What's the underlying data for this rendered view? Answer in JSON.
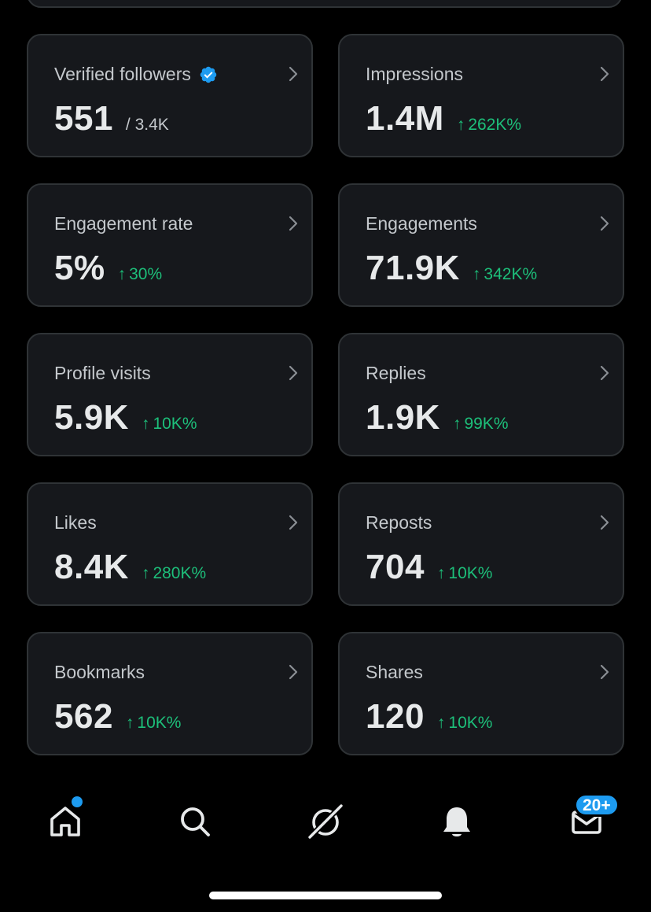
{
  "colors": {
    "background": "#000000",
    "card_background": "#16181c",
    "card_border": "#2f3336",
    "positive": "#1dbf7a",
    "accent": "#1d9bf0"
  },
  "metrics": [
    {
      "label": "Verified followers",
      "value": "551",
      "sub": "/ 3.4K",
      "delta": "",
      "verified_icon": true
    },
    {
      "label": "Impressions",
      "value": "1.4M",
      "sub": "",
      "delta": "262K%"
    },
    {
      "label": "Engagement rate",
      "value": "5%",
      "sub": "",
      "delta": "30%"
    },
    {
      "label": "Engagements",
      "value": "71.9K",
      "sub": "",
      "delta": "342K%"
    },
    {
      "label": "Profile visits",
      "value": "5.9K",
      "sub": "",
      "delta": "10K%"
    },
    {
      "label": "Replies",
      "value": "1.9K",
      "sub": "",
      "delta": "99K%"
    },
    {
      "label": "Likes",
      "value": "8.4K",
      "sub": "",
      "delta": "280K%"
    },
    {
      "label": "Reposts",
      "value": "704",
      "sub": "",
      "delta": "10K%"
    },
    {
      "label": "Bookmarks",
      "value": "562",
      "sub": "",
      "delta": "10K%"
    },
    {
      "label": "Shares",
      "value": "120",
      "sub": "",
      "delta": "10K%"
    }
  ],
  "delta_arrow": "↑",
  "bottom_nav": {
    "items": [
      {
        "icon": "home-icon",
        "has_dot": true
      },
      {
        "icon": "search-icon"
      },
      {
        "icon": "grok-icon"
      },
      {
        "icon": "bell-icon"
      },
      {
        "icon": "mail-icon",
        "badge": "20+"
      }
    ]
  }
}
